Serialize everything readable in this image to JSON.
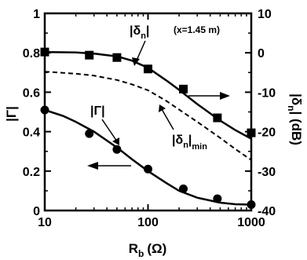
{
  "chart_data": {
    "type": "scatter",
    "x_axis": {
      "label": "R_b (Ω)",
      "label_main": "R",
      "label_sub": "b",
      "label_unit": "(Ω)",
      "scale": "log",
      "lim": [
        10,
        1000
      ],
      "ticks": [
        10,
        100,
        1000
      ],
      "tick_labels": [
        "10",
        "100",
        "1000"
      ]
    },
    "y_axis_left": {
      "label": "|Γ|",
      "lim": [
        0,
        1
      ],
      "ticks": [
        0,
        0.2,
        0.4,
        0.6,
        0.8,
        1
      ],
      "tick_labels": [
        "0",
        "0.2",
        "0.4",
        "0.6",
        "0.8",
        "1"
      ]
    },
    "y_axis_right": {
      "label": "|δn| (dB)",
      "label_main": "|δ",
      "label_sub": "n",
      "label_unit": "| (dB)",
      "lim": [
        -40,
        10
      ],
      "ticks": [
        -40,
        -30,
        -20,
        -10,
        0,
        10
      ],
      "tick_labels": [
        "-40",
        "-30",
        "-20",
        "-10",
        "0",
        "10"
      ]
    },
    "series": [
      {
        "axis": "left",
        "style": "marker-circle",
        "x": [
          10,
          27,
          50,
          100,
          220,
          470,
          1000
        ],
        "y": [
          0.51,
          0.39,
          0.31,
          0.21,
          0.11,
          0.06,
          0.03
        ]
      },
      {
        "axis": "left",
        "style": "solid-line",
        "x": [
          10,
          15,
          20,
          30,
          50,
          70,
          100,
          150,
          200,
          300,
          500,
          700,
          1000
        ],
        "y": [
          0.51,
          0.48,
          0.45,
          0.4,
          0.32,
          0.26,
          0.2,
          0.14,
          0.1,
          0.065,
          0.04,
          0.032,
          0.03
        ]
      },
      {
        "axis": "right",
        "style": "marker-square",
        "x": [
          10,
          27,
          50,
          100,
          220,
          470,
          1000
        ],
        "y": [
          0.2,
          -0.6,
          -1.2,
          -4.1,
          -9.2,
          -16.5,
          -20.3
        ]
      },
      {
        "axis": "right",
        "style": "solid-line",
        "x": [
          10,
          20,
          30,
          50,
          70,
          100,
          150,
          200,
          300,
          500,
          700,
          1000
        ],
        "y": [
          0.2,
          0.1,
          -0.2,
          -0.9,
          -2.0,
          -3.8,
          -7.0,
          -9.4,
          -13.0,
          -17.2,
          -19.6,
          -21.8
        ]
      },
      {
        "axis": "right",
        "style": "dashed-line",
        "x": [
          10,
          20,
          30,
          50,
          70,
          100,
          150,
          200,
          300,
          500,
          700,
          1000
        ],
        "y": [
          -4.8,
          -5.3,
          -5.8,
          -6.9,
          -8.0,
          -9.5,
          -12.2,
          -14.4,
          -17.5,
          -21.6,
          -24.4,
          -27.2
        ]
      }
    ],
    "annotations": {
      "delta_n": {
        "main": "|δ",
        "sub": "n",
        "tail": "|"
      },
      "delta_n_note": "(x=1.45 m)",
      "delta_min": {
        "main": "|δ",
        "sub": "n",
        "tail": "|",
        "sub2": "min"
      },
      "gamma": "|Γ|"
    },
    "grid": false,
    "legend": "none"
  },
  "colors": {
    "ink": "#000000",
    "background": "#ffffff"
  }
}
